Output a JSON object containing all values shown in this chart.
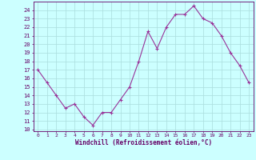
{
  "x": [
    0,
    1,
    2,
    3,
    4,
    5,
    6,
    7,
    8,
    9,
    10,
    11,
    12,
    13,
    14,
    15,
    16,
    17,
    18,
    19,
    20,
    21,
    22,
    23
  ],
  "y": [
    17,
    15.5,
    14,
    12.5,
    13,
    11.5,
    10.5,
    12,
    12,
    13.5,
    15,
    18,
    21.5,
    19.5,
    22,
    23.5,
    23.5,
    24.5,
    23,
    22.5,
    21,
    19,
    17.5,
    15.5
  ],
  "line_color": "#993399",
  "marker": "+",
  "bg_color": "#ccffff",
  "grid_color": "#aadddd",
  "xlabel": "Windchill (Refroidissement éolien,°C)",
  "ylabel_ticks": [
    10,
    11,
    12,
    13,
    14,
    15,
    16,
    17,
    18,
    19,
    20,
    21,
    22,
    23,
    24
  ],
  "ylim": [
    9.8,
    25.0
  ],
  "xlim": [
    -0.5,
    23.5
  ],
  "axis_color": "#660066",
  "tick_color": "#660066",
  "label_color": "#660066"
}
